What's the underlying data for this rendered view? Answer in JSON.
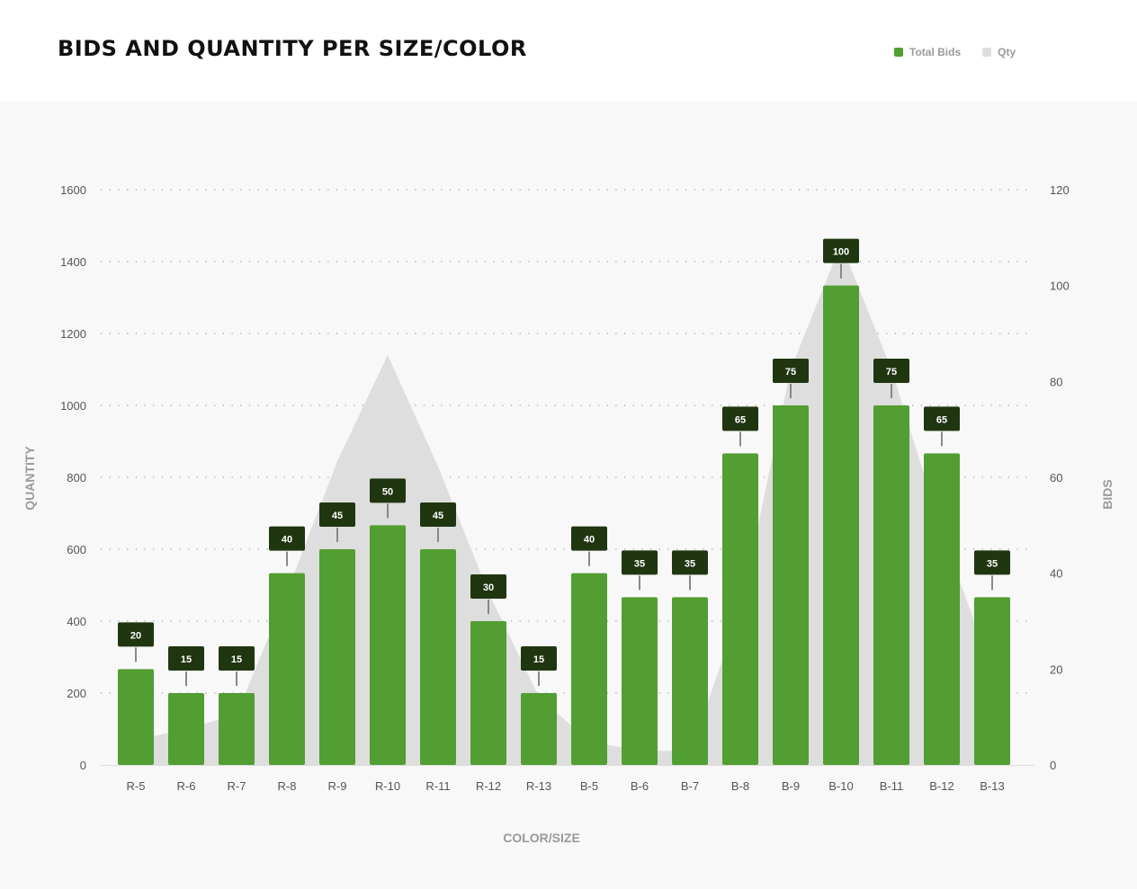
{
  "title": "BIDS AND QUANTITY PER SIZE/COLOR",
  "legend": [
    {
      "label": "Total Bids",
      "color": "#529e32"
    },
    {
      "label": "Qty",
      "color": "#dedede"
    }
  ],
  "chart_data": {
    "type": "bar",
    "title": "BIDS AND QUANTITY PER SIZE/COLOR",
    "xlabel": "COLOR/SIZE",
    "ylabel": "QUANTITY",
    "y2label": "BIDS",
    "categories": [
      "R-5",
      "R-6",
      "R-7",
      "R-8",
      "R-9",
      "R-10",
      "R-11",
      "R-12",
      "R-13",
      "B-5",
      "B-6",
      "B-7",
      "B-8",
      "B-9",
      "B-10",
      "B-11",
      "B-12",
      "B-13"
    ],
    "series": [
      {
        "name": "Total Bids",
        "type": "bar",
        "axis": "right",
        "color": "#529e32",
        "values": [
          20,
          15,
          15,
          40,
          45,
          50,
          45,
          30,
          15,
          40,
          35,
          35,
          65,
          75,
          100,
          75,
          65,
          35
        ]
      },
      {
        "name": "Qty",
        "type": "area",
        "axis": "left",
        "color": "#dedede",
        "values": [
          80,
          100,
          140,
          480,
          845,
          1140,
          830,
          480,
          190,
          65,
          40,
          38,
          430,
          1100,
          1450,
          1100,
          650,
          400
        ]
      }
    ],
    "ylim": [
      0,
      1600
    ],
    "yticks": [
      "0",
      "200",
      "400",
      "600",
      "800",
      "1000",
      "1200",
      "1400",
      "1600"
    ],
    "y2lim": [
      0,
      120
    ],
    "y2ticks": [
      "0",
      "20",
      "40",
      "60",
      "80",
      "100",
      "120"
    ],
    "grid": true,
    "legend_position": "top-right"
  }
}
